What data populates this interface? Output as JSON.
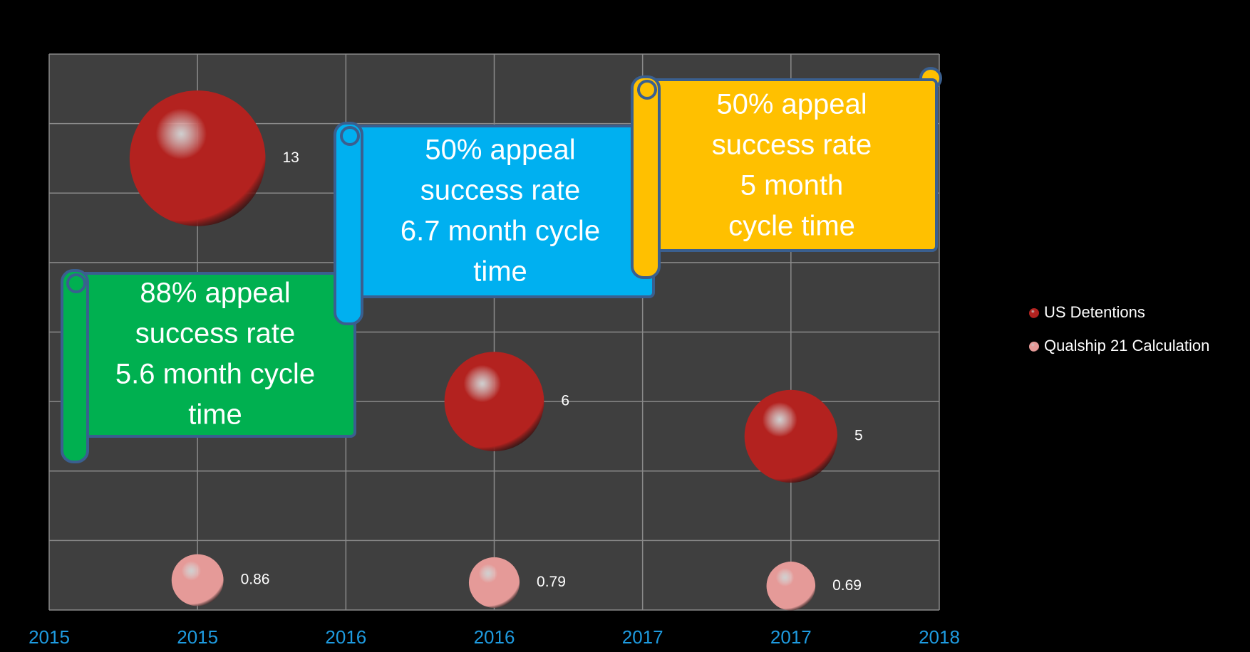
{
  "chart_data": {
    "type": "bubble",
    "xlim": [
      2015,
      2018
    ],
    "xticks": [
      {
        "value": 2015,
        "label": "2015"
      },
      {
        "value": 2015.5,
        "label": "2015"
      },
      {
        "value": 2016,
        "label": "2016"
      },
      {
        "value": 2016.5,
        "label": "2016"
      },
      {
        "value": 2017,
        "label": "2017"
      },
      {
        "value": 2017.5,
        "label": "2017"
      },
      {
        "value": 2018,
        "label": "2018"
      }
    ],
    "ylim": [
      0,
      16
    ],
    "yticks": [
      0,
      2,
      4,
      6,
      8,
      10,
      12,
      14,
      16
    ],
    "grid": true,
    "legend": "right",
    "x": [
      2015.5,
      2016.5,
      2017.5
    ],
    "series": [
      {
        "name": "US Detentions",
        "color": "#b3221f",
        "values": [
          13,
          6,
          5
        ]
      },
      {
        "name": "Qualship 21 Calculation",
        "color": "#e59a98",
        "values": [
          0.86,
          0.79,
          0.69
        ]
      }
    ],
    "annotations": [
      {
        "lines": [
          "88% appeal",
          "success rate",
          "5.6 month cycle",
          "time"
        ],
        "color": "#00b050"
      },
      {
        "lines": [
          "50% appeal",
          "success rate",
          "6.7 month cycle",
          "time"
        ],
        "color": "#00b0f0"
      },
      {
        "lines": [
          "50% appeal",
          "success rate",
          "5 month",
          "cycle time"
        ],
        "color": "#ffc000"
      }
    ]
  }
}
